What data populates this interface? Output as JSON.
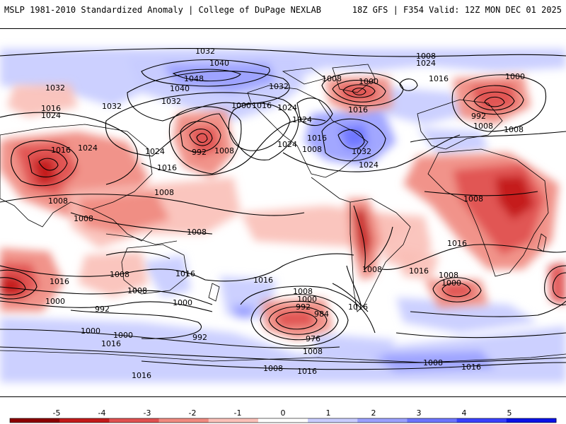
{
  "header": {
    "left_title": "MSLP 1981-2010 Standardized Anomaly | College of DuPage NEXLAB",
    "right_title": "18Z GFS | F354 Valid: 12Z MON DEC 01 2025"
  },
  "colors": {
    "neg5": "#8b0000",
    "neg4": "#c21a1a",
    "neg3": "#e05050",
    "neg2": "#f08a80",
    "neg1": "#fac0b8",
    "zero": "#ffffff",
    "pos1": "#c8ccff",
    "pos2": "#9aa0ff",
    "pos3": "#6c74ff",
    "pos4": "#3840ff",
    "pos5": "#0a12e8",
    "contour": "#000000",
    "coast": "#000000"
  },
  "colorbar": {
    "ticks": [
      "-5",
      "-4",
      "-3",
      "-2",
      "-1",
      "0",
      "1",
      "2",
      "3",
      "4",
      "5"
    ],
    "values": [
      -5,
      -4,
      -3,
      -2,
      -1,
      0,
      1,
      2,
      3,
      4,
      5
    ]
  },
  "isobar_labels": [
    "1032",
    "1040",
    "1048",
    "1040",
    "1032",
    "1032",
    "1024",
    "1032",
    "1016",
    "1016",
    "1024",
    "1032",
    "1000",
    "1016",
    "1024",
    "1024",
    "1024",
    "992",
    "1008",
    "1016",
    "1024",
    "1008",
    "1032",
    "1024",
    "1016",
    "1016",
    "1008",
    "1000",
    "1016",
    "1024",
    "1008",
    "992",
    "1000",
    "1008",
    "1008",
    "1008",
    "1008",
    "1008",
    "1008",
    "1008",
    "1016",
    "1016",
    "1008",
    "1008",
    "1016",
    "1016",
    "1008",
    "1016",
    "1008",
    "1000",
    "1000",
    "1008",
    "1000",
    "992",
    "984",
    "976",
    "1016",
    "992",
    "1000",
    "1000",
    "1016",
    "992",
    "1000",
    "1008",
    "1016",
    "1008",
    "1016",
    "1016",
    "1008"
  ],
  "anomaly_regions": [
    {
      "name": "aleutian-low-anomaly",
      "value": -3
    },
    {
      "name": "north-atlantic-low-anomaly",
      "value": -3
    },
    {
      "name": "siberia-low-anomaly",
      "value": -3
    },
    {
      "name": "africa-anomaly",
      "value": -3
    },
    {
      "name": "andes-anomaly",
      "value": -4
    },
    {
      "name": "south-pacific-low-anomaly",
      "value": -3
    },
    {
      "name": "arctic-high-anomaly",
      "value": 2
    },
    {
      "name": "antarctic-high-anomaly",
      "value": 2
    },
    {
      "name": "eastern-us-high-anomaly",
      "value": 3
    }
  ]
}
